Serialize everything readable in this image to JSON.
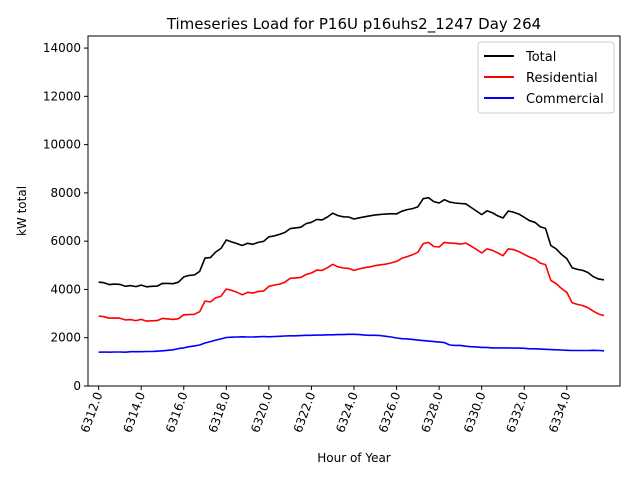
{
  "chart_data": {
    "type": "line",
    "title": "Timeseries Load for P16U p16uhs2_1247  Day 264",
    "xlabel": "Hour of Year",
    "ylabel": "kW total",
    "xlim": [
      6311.5,
      6336.5
    ],
    "ylim": [
      0,
      14500
    ],
    "xticks": [
      6312,
      6314,
      6316,
      6318,
      6320,
      6322,
      6324,
      6326,
      6328,
      6330,
      6332,
      6334
    ],
    "xtick_labels": [
      "6312.0",
      "6314.0",
      "6316.0",
      "6318.0",
      "6320.0",
      "6322.0",
      "6324.0",
      "6326.0",
      "6328.0",
      "6330.0",
      "6332.0",
      "6334.0"
    ],
    "yticks": [
      0,
      2000,
      4000,
      6000,
      8000,
      10000,
      12000,
      14000
    ],
    "ytick_labels": [
      "0",
      "2000",
      "4000",
      "6000",
      "8000",
      "10000",
      "12000",
      "14000"
    ],
    "grid": false,
    "legend_position": "top-right",
    "x": [
      6312.0,
      6312.25,
      6312.5,
      6312.75,
      6313.0,
      6313.25,
      6313.5,
      6313.75,
      6314.0,
      6314.25,
      6314.5,
      6314.75,
      6315.0,
      6315.25,
      6315.5,
      6315.75,
      6316.0,
      6316.25,
      6316.5,
      6316.75,
      6317.0,
      6317.25,
      6317.5,
      6317.75,
      6318.0,
      6318.25,
      6318.5,
      6318.75,
      6319.0,
      6319.25,
      6319.5,
      6319.75,
      6320.0,
      6320.25,
      6320.5,
      6320.75,
      6321.0,
      6321.25,
      6321.5,
      6321.75,
      6322.0,
      6322.25,
      6322.5,
      6322.75,
      6323.0,
      6323.25,
      6323.5,
      6323.75,
      6324.0,
      6324.25,
      6324.5,
      6324.75,
      6325.0,
      6325.25,
      6325.5,
      6325.75,
      6326.0,
      6326.25,
      6326.5,
      6326.75,
      6327.0,
      6327.25,
      6327.5,
      6327.75,
      6328.0,
      6328.25,
      6328.5,
      6328.75,
      6329.0,
      6329.25,
      6329.5,
      6329.75,
      6330.0,
      6330.25,
      6330.5,
      6330.75,
      6331.0,
      6331.25,
      6331.5,
      6331.75,
      6332.0,
      6332.25,
      6332.5,
      6332.75,
      6333.0,
      6333.25,
      6333.5,
      6333.75,
      6334.0,
      6334.25,
      6334.5,
      6334.75,
      6335.0,
      6335.25,
      6335.5,
      6335.75
    ],
    "series": [
      {
        "name": "Total",
        "color": "#000000",
        "values": [
          4300,
          4280,
          4200,
          4220,
          4210,
          4130,
          4160,
          4120,
          4180,
          4110,
          4130,
          4140,
          4250,
          4250,
          4240,
          4300,
          4520,
          4580,
          4600,
          4750,
          5300,
          5320,
          5550,
          5700,
          6050,
          5970,
          5900,
          5820,
          5910,
          5870,
          5950,
          5990,
          6180,
          6220,
          6280,
          6360,
          6520,
          6550,
          6580,
          6730,
          6780,
          6900,
          6880,
          7000,
          7160,
          7060,
          7010,
          7000,
          6920,
          6970,
          7010,
          7050,
          7090,
          7110,
          7120,
          7140,
          7130,
          7240,
          7310,
          7350,
          7420,
          7760,
          7800,
          7640,
          7580,
          7720,
          7620,
          7580,
          7560,
          7550,
          7400,
          7250,
          7100,
          7260,
          7180,
          7050,
          6960,
          7250,
          7200,
          7120,
          6990,
          6850,
          6780,
          6600,
          6530,
          5820,
          5680,
          5450,
          5280,
          4900,
          4830,
          4790,
          4700,
          4530,
          4430,
          4400
        ]
      },
      {
        "name": "Residential",
        "color": "#ff0000",
        "values": [
          2900,
          2870,
          2810,
          2820,
          2810,
          2740,
          2750,
          2710,
          2760,
          2690,
          2700,
          2710,
          2800,
          2780,
          2760,
          2790,
          2950,
          2960,
          2970,
          3080,
          3520,
          3480,
          3650,
          3720,
          4020,
          3960,
          3880,
          3780,
          3880,
          3850,
          3920,
          3930,
          4130,
          4180,
          4220,
          4300,
          4460,
          4480,
          4500,
          4620,
          4680,
          4800,
          4790,
          4900,
          5040,
          4940,
          4890,
          4870,
          4790,
          4850,
          4900,
          4940,
          4990,
          5020,
          5050,
          5100,
          5160,
          5290,
          5360,
          5440,
          5540,
          5900,
          5950,
          5780,
          5760,
          5950,
          5920,
          5910,
          5880,
          5920,
          5800,
          5660,
          5510,
          5680,
          5620,
          5520,
          5400,
          5680,
          5650,
          5570,
          5450,
          5340,
          5260,
          5090,
          5030,
          4380,
          4240,
          4040,
          3880,
          3450,
          3380,
          3330,
          3240,
          3100,
          2980,
          2920
        ]
      },
      {
        "name": "Commercial",
        "color": "#0000ff",
        "values": [
          1400,
          1410,
          1400,
          1410,
          1410,
          1400,
          1420,
          1420,
          1420,
          1430,
          1430,
          1440,
          1460,
          1480,
          1500,
          1550,
          1580,
          1630,
          1660,
          1700,
          1780,
          1840,
          1900,
          1950,
          2010,
          2020,
          2030,
          2040,
          2030,
          2030,
          2040,
          2050,
          2040,
          2050,
          2060,
          2070,
          2080,
          2080,
          2090,
          2100,
          2100,
          2110,
          2110,
          2120,
          2120,
          2130,
          2130,
          2140,
          2140,
          2130,
          2110,
          2100,
          2100,
          2090,
          2060,
          2030,
          1990,
          1960,
          1950,
          1930,
          1900,
          1880,
          1860,
          1840,
          1820,
          1800,
          1700,
          1680,
          1680,
          1650,
          1630,
          1620,
          1600,
          1600,
          1580,
          1580,
          1580,
          1580,
          1570,
          1570,
          1560,
          1540,
          1540,
          1530,
          1520,
          1510,
          1500,
          1490,
          1480,
          1470,
          1470,
          1470,
          1470,
          1480,
          1470,
          1460
        ]
      }
    ]
  }
}
